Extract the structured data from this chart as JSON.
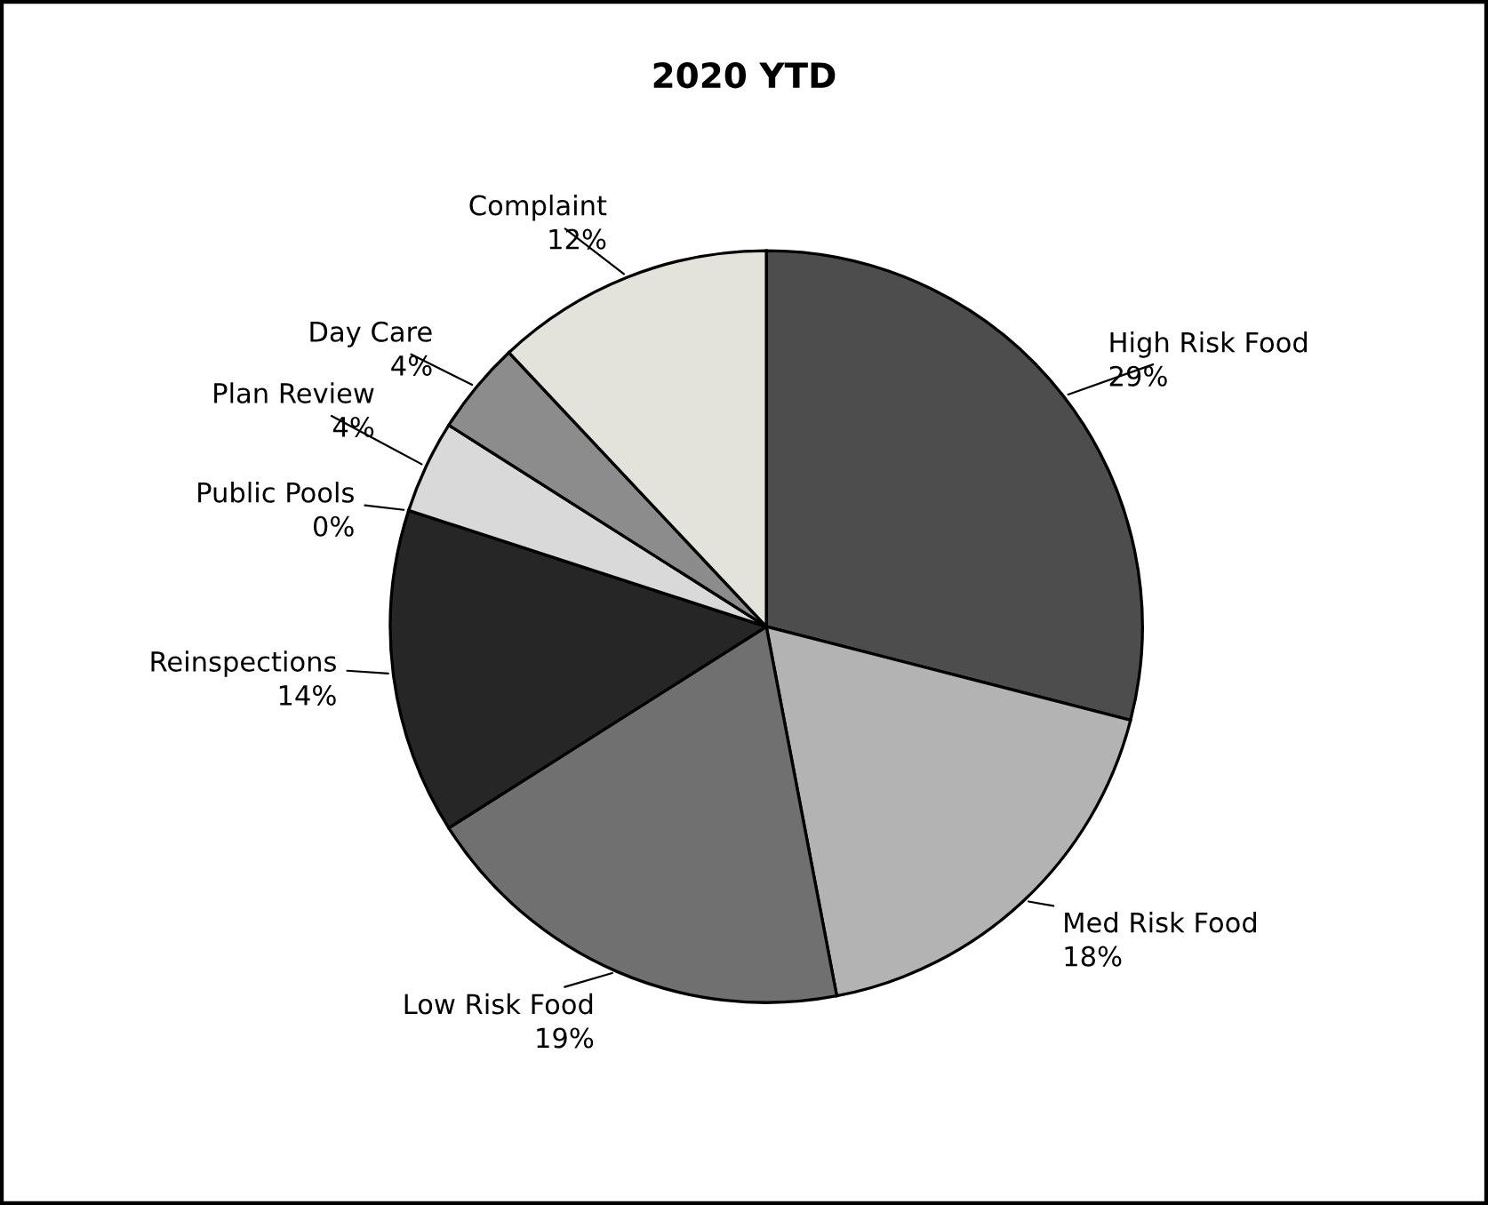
{
  "chart_data": {
    "type": "pie",
    "title": "2020 YTD",
    "categories": [
      "High Risk Food",
      "Med Risk Food",
      "Low Risk Food",
      "Reinspections",
      "Public Pools",
      "Plan Review",
      "Day Care",
      "Complaint"
    ],
    "values": [
      29,
      18,
      19,
      14,
      0,
      4,
      4,
      12
    ],
    "colors": [
      "#4d4d4d",
      "#b3b3b3",
      "#707070",
      "#262626",
      "#8a8a8a",
      "#d9d9d9",
      "#8c8c8c",
      "#e3e3dc"
    ],
    "value_labels": [
      "29%",
      "18%",
      "19%",
      "14%",
      "0%",
      "4%",
      "4%",
      "12%"
    ]
  }
}
